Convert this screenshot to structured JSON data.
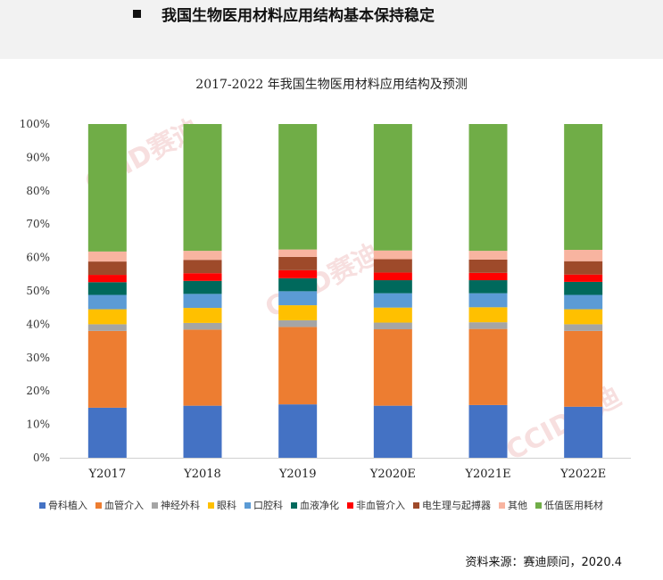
{
  "header": {
    "title": "我国生物医用材料应用结构基本保持稳定"
  },
  "chart_title": "2017-2022 年我国生物医用材料应用结构及预测",
  "source_note": "资料来源：赛迪顾问，2020.4",
  "watermark_text": "CCID赛迪",
  "chart_data": {
    "type": "bar",
    "stacked": true,
    "title": "2017-2022 年我国生物医用材料应用结构及预测",
    "categories": [
      "Y2017",
      "Y2018",
      "Y2019",
      "Y2020E",
      "Y2021E",
      "Y2022E"
    ],
    "ylim": [
      0,
      100
    ],
    "yticks": [
      "0%",
      "10%",
      "20%",
      "30%",
      "40%",
      "50%",
      "60%",
      "70%",
      "80%",
      "90%",
      "100%"
    ],
    "grid": false,
    "legend_position": "bottom",
    "series": [
      {
        "name": "骨科植入",
        "color": "#4472C4",
        "values": [
          15.0,
          15.6,
          16.0,
          15.6,
          15.8,
          15.3
        ]
      },
      {
        "name": "血管介入",
        "color": "#ED7D31",
        "values": [
          23.0,
          22.8,
          23.2,
          22.9,
          22.8,
          22.7
        ]
      },
      {
        "name": "神经外科",
        "color": "#A5A5A5",
        "values": [
          2.0,
          2.0,
          2.0,
          2.0,
          2.0,
          2.0
        ]
      },
      {
        "name": "眼科",
        "color": "#FFC000",
        "values": [
          4.5,
          4.5,
          4.5,
          4.5,
          4.5,
          4.5
        ]
      },
      {
        "name": "口腔科",
        "color": "#5B9BD5",
        "values": [
          4.3,
          4.2,
          4.2,
          4.3,
          4.2,
          4.3
        ]
      },
      {
        "name": "血液净化",
        "color": "#00695C",
        "values": [
          3.8,
          3.9,
          3.9,
          3.9,
          3.9,
          3.9
        ]
      },
      {
        "name": "非血管介入",
        "color": "#FF0000",
        "values": [
          2.2,
          2.3,
          2.4,
          2.3,
          2.2,
          2.2
        ]
      },
      {
        "name": "电生理与起搏器",
        "color": "#9E4A2A",
        "values": [
          4.0,
          4.0,
          4.0,
          4.0,
          4.0,
          4.0
        ]
      },
      {
        "name": "其他",
        "color": "#F8B4A0",
        "values": [
          3.0,
          2.7,
          2.2,
          2.6,
          2.6,
          3.4
        ]
      },
      {
        "name": "低值医用耗材",
        "color": "#70AD47",
        "values": [
          38.2,
          38.0,
          37.6,
          37.9,
          38.0,
          37.7
        ]
      }
    ]
  }
}
